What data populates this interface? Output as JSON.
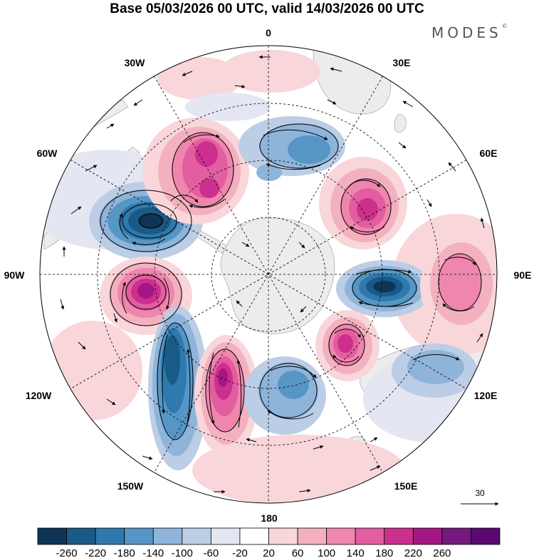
{
  "header": {
    "title": "Base 05/03/2026 00 UTC, valid 14/03/2026 00 UTC",
    "logo": "MODES",
    "logo_mark": "©"
  },
  "map": {
    "projection": "south-polar-stereographic",
    "longitude_labels": [
      {
        "id": "lon-0",
        "text": "0"
      },
      {
        "id": "lon-30e",
        "text": "30E"
      },
      {
        "id": "lon-60e",
        "text": "60E"
      },
      {
        "id": "lon-90e",
        "text": "90E"
      },
      {
        "id": "lon-120e",
        "text": "120E"
      },
      {
        "id": "lon-150e",
        "text": "150E"
      },
      {
        "id": "lon-180",
        "text": "180"
      },
      {
        "id": "lon-150w",
        "text": "150W"
      },
      {
        "id": "lon-120w",
        "text": "120W"
      },
      {
        "id": "lon-90w",
        "text": "90W"
      },
      {
        "id": "lon-60w",
        "text": "60W"
      },
      {
        "id": "lon-30w",
        "text": "30W"
      }
    ],
    "anomalies": [
      {
        "id": "neg-weddell-pacific",
        "value": -260
      },
      {
        "id": "pos-90w",
        "value": 240
      },
      {
        "id": "neg-130w",
        "value": -220
      },
      {
        "id": "pos-160w",
        "value": 220
      },
      {
        "id": "pos-north-60w",
        "value": 200
      },
      {
        "id": "neg-south-atlantic",
        "value": -140
      },
      {
        "id": "pos-45e",
        "value": 180
      },
      {
        "id": "neg-95e",
        "value": -260
      },
      {
        "id": "pos-100e",
        "value": 140
      },
      {
        "id": "pos-120e",
        "value": 220
      },
      {
        "id": "neg-165e",
        "value": -140
      },
      {
        "id": "neg-australia",
        "value": -100
      }
    ],
    "reference_vector": {
      "label": "30"
    }
  },
  "colorbar": {
    "ticks": [
      "-260",
      "-220",
      "-180",
      "-140",
      "-100",
      "-60",
      "-20",
      "20",
      "60",
      "100",
      "140",
      "180",
      "220",
      "260"
    ],
    "colors": [
      "#0f3556",
      "#1a5a86",
      "#2f79ad",
      "#5696c5",
      "#8fb4d9",
      "#bccde6",
      "#e4e6f2",
      "#ffffff",
      "#f8d6da",
      "#f3b1c0",
      "#ee86ad",
      "#e25ea0",
      "#cc2f8d",
      "#a31683",
      "#751a7d",
      "#5a0a6e"
    ]
  }
}
